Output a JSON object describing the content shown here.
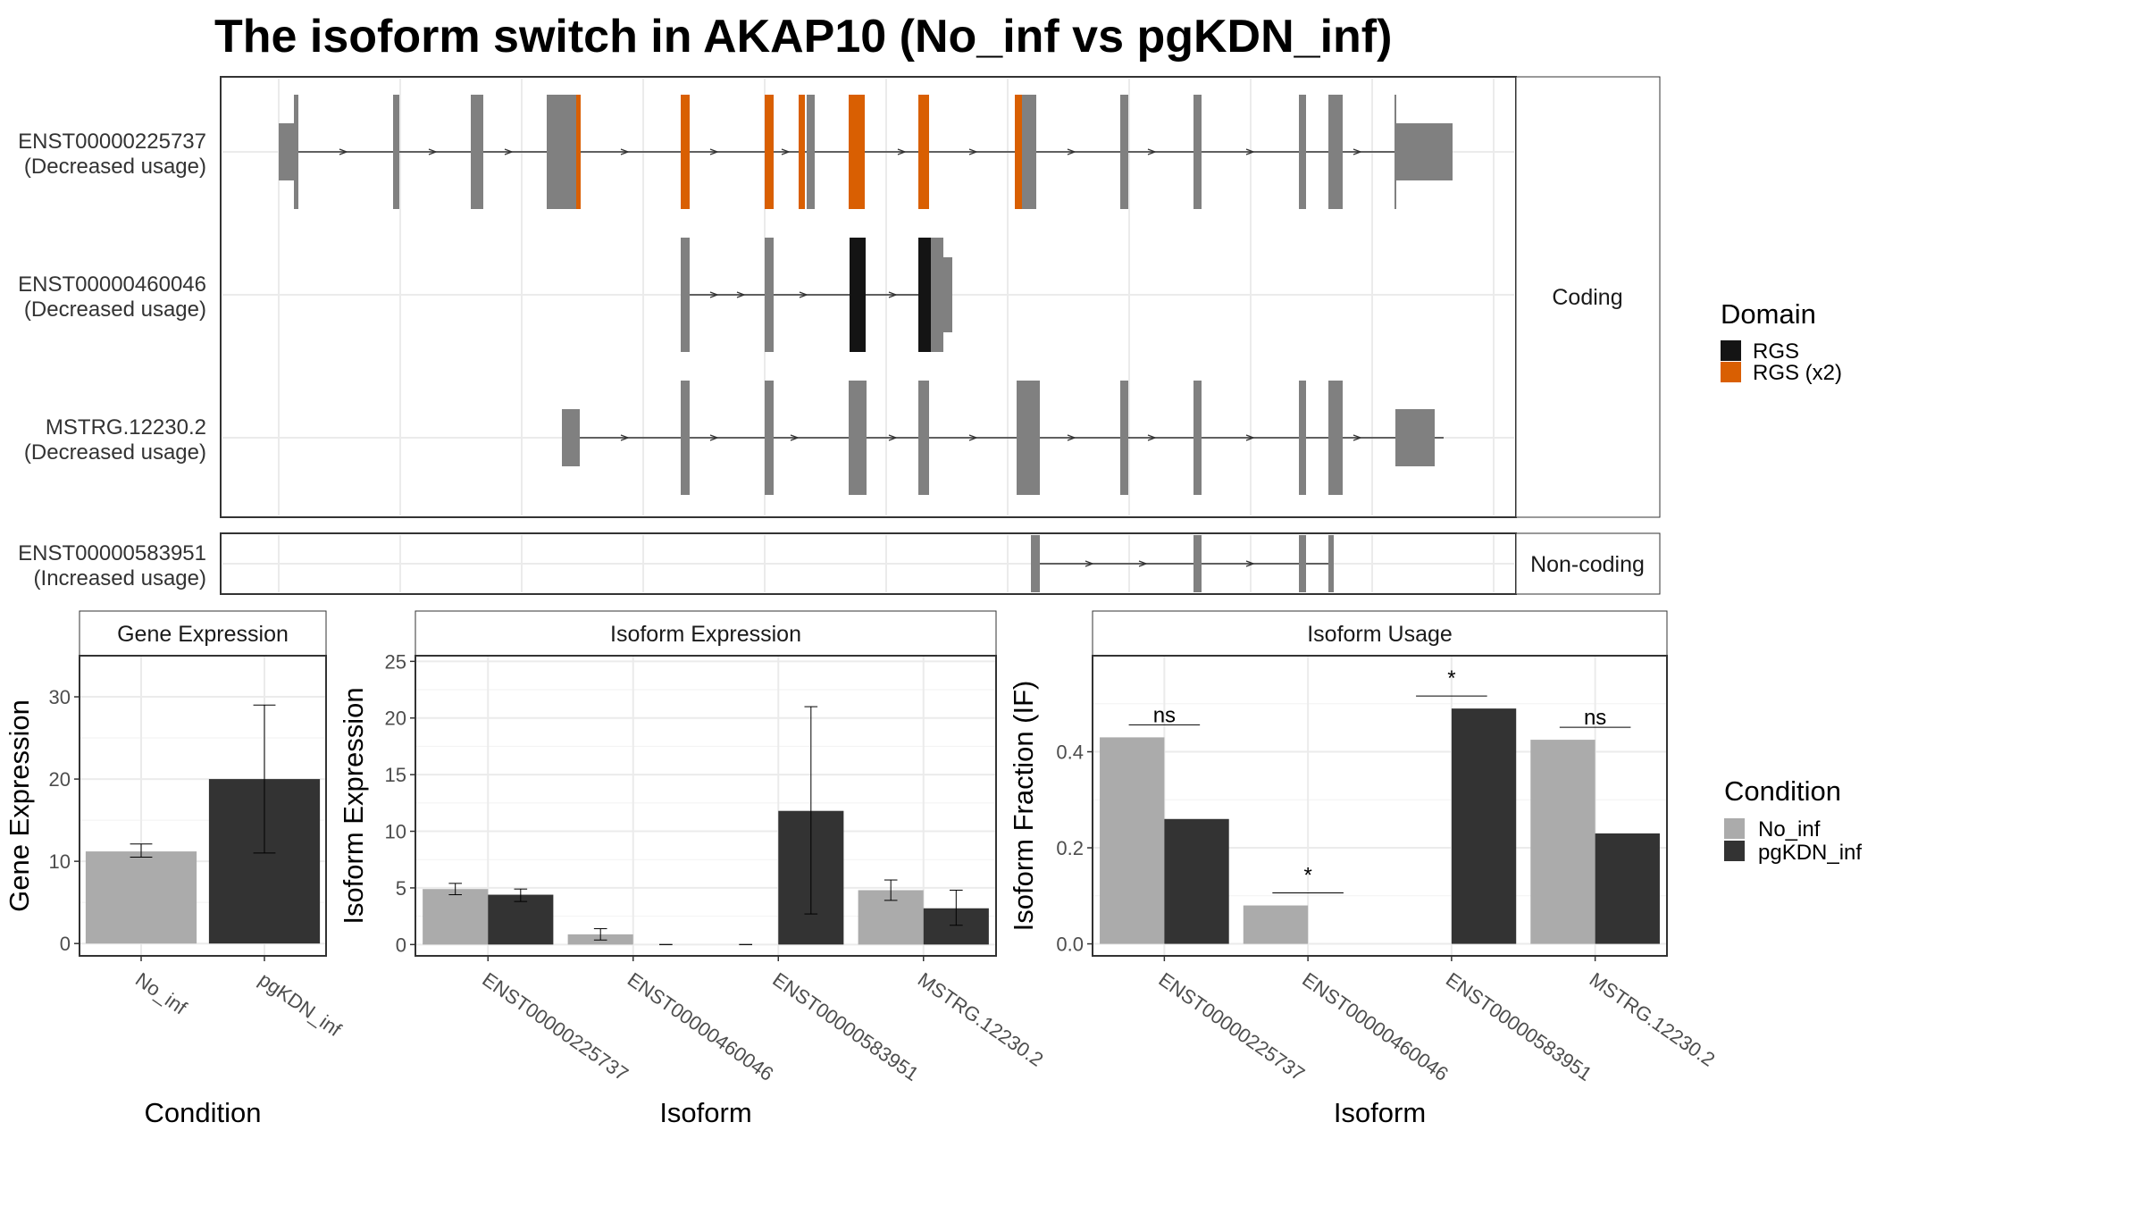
{
  "title": "The isoform switch in AKAP10 (No_inf vs pgKDN_inf)",
  "colors": {
    "exon": "#808080",
    "domain_rgs": "#141414",
    "domain_rgs_x2": "#D95F02",
    "no_inf": "#ABABAB",
    "pgkdn_inf": "#333333"
  },
  "structure": {
    "rows": [
      {
        "id": "ENST00000225737",
        "usage": "(Decreased usage)",
        "group": "coding"
      },
      {
        "id": "ENST00000460046",
        "usage": "(Decreased usage)",
        "group": "coding"
      },
      {
        "id": "MSTRG.12230.2",
        "usage": "(Decreased usage)",
        "group": "coding"
      },
      {
        "id": "ENST00000583951",
        "usage": "(Increased usage)",
        "group": "noncoding"
      }
    ],
    "strip_coding": "Coding",
    "strip_noncoding": "Non-coding"
  },
  "domain_legend": {
    "title": "Domain",
    "entries": [
      {
        "label": "RGS",
        "color": "#141414"
      },
      {
        "label": "RGS (x2)",
        "color": "#D95F02"
      }
    ]
  },
  "condition_legend": {
    "title": "Condition",
    "entries": [
      {
        "label": "No_inf",
        "color": "#ABABAB"
      },
      {
        "label": "pgKDN_inf",
        "color": "#333333"
      }
    ]
  },
  "chart_data": [
    {
      "type": "bar",
      "title": "Gene Expression",
      "xlabel": "Condition",
      "ylabel": "Gene Expression",
      "categories": [
        "No_inf",
        "pgKDN_inf"
      ],
      "values": [
        11.2,
        20.0
      ],
      "errors": [
        [
          10.5,
          12.1
        ],
        [
          11.0,
          29.0
        ]
      ],
      "ylim": [
        -1.5,
        35
      ],
      "yticks": [
        0,
        10,
        20,
        30
      ],
      "grid": true
    },
    {
      "type": "bar",
      "title": "Isoform Expression",
      "xlabel": "Isoform",
      "ylabel": "Isoform Expression",
      "categories": [
        "ENST00000225737",
        "ENST00000460046",
        "ENST00000583951",
        "MSTRG.12230.2"
      ],
      "series": [
        {
          "name": "No_inf",
          "values": [
            4.9,
            0.9,
            0.0,
            4.8
          ],
          "errors": [
            [
              4.4,
              5.4
            ],
            [
              0.4,
              1.4
            ],
            [
              0.0,
              0.0
            ],
            [
              3.9,
              5.7
            ]
          ]
        },
        {
          "name": "pgKDN_inf",
          "values": [
            4.4,
            0.0,
            11.8,
            3.2
          ],
          "errors": [
            [
              3.8,
              4.9
            ],
            [
              0.0,
              0.0
            ],
            [
              2.7,
              21.0
            ],
            [
              1.7,
              4.8
            ]
          ]
        }
      ],
      "ylim": [
        -1.0,
        25.5
      ],
      "yticks": [
        0,
        5,
        10,
        15,
        20,
        25
      ],
      "grid": true
    },
    {
      "type": "bar",
      "title": "Isoform Usage",
      "xlabel": "Isoform",
      "ylabel": "Isoform Fraction (IF)",
      "categories": [
        "ENST00000225737",
        "ENST00000460046",
        "ENST00000583951",
        "MSTRG.12230.2"
      ],
      "series": [
        {
          "name": "No_inf",
          "values": [
            0.43,
            0.08,
            0.0,
            0.425
          ]
        },
        {
          "name": "pgKDN_inf",
          "values": [
            0.26,
            0.0,
            0.49,
            0.23
          ]
        }
      ],
      "significance": [
        "ns",
        "*",
        "*",
        "ns"
      ],
      "ylim": [
        -0.025,
        0.6
      ],
      "yticks": [
        0.0,
        0.2,
        0.4
      ],
      "grid": true
    }
  ]
}
